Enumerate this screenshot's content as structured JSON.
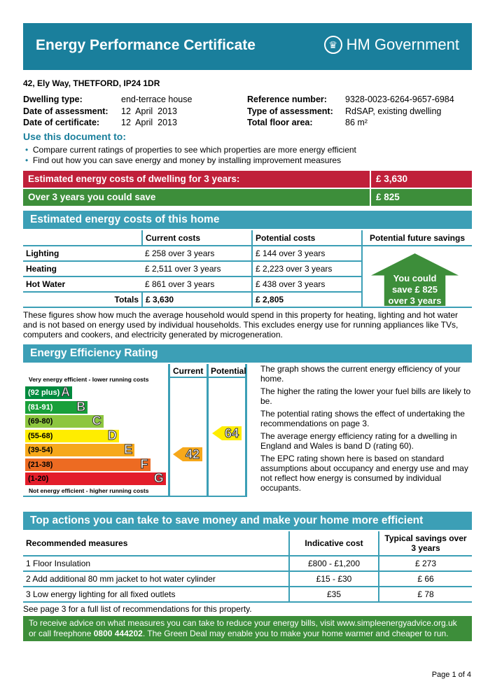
{
  "header": {
    "title": "Energy Performance Certificate",
    "brand": "HM Government"
  },
  "address": "42, Ely Way, THETFORD, IP24 1DR",
  "details": [
    {
      "label": "Dwelling type:",
      "value": "end-terrace house"
    },
    {
      "label": "Date of assessment:",
      "value": "12  April  2013"
    },
    {
      "label": "Date of certificate:",
      "value": "12  April  2013"
    },
    {
      "label": "Reference number:",
      "value": "9328-0023-6264-9657-6984"
    },
    {
      "label": "Type of assessment:",
      "value": "RdSAP, existing dwelling"
    },
    {
      "label": "Total floor area:",
      "value": "86 m²"
    }
  ],
  "use": {
    "title": "Use this document to:",
    "items": [
      "Compare current ratings of properties to see which properties are more energy efficient",
      "Find out how you can save energy and money by installing improvement measures"
    ]
  },
  "summary": [
    {
      "label": "Estimated energy costs of dwelling for 3 years:",
      "value": "£ 3,630",
      "color": "#c0203a"
    },
    {
      "label": "Over 3 years you could save",
      "value": "£ 825",
      "color": "#3d8e3a"
    }
  ],
  "costs": {
    "title": "Estimated energy costs of this home",
    "headers": [
      "",
      "Current costs",
      "Potential costs",
      "Potential future savings"
    ],
    "rows": [
      [
        "Lighting",
        "£ 258 over 3 years",
        "£ 144 over 3 years"
      ],
      [
        "Heating",
        "£ 2,511 over 3 years",
        "£ 2,223 over 3 years"
      ],
      [
        "Hot Water",
        "£ 861 over 3 years",
        "£ 438 over 3 years"
      ]
    ],
    "totals": [
      "Totals",
      "£ 3,630",
      "£ 2,805"
    ],
    "savings": [
      "You could",
      "save £ 825",
      "over 3 years"
    ],
    "note": "These figures show how much the average household would spend in this property for heating, lighting and hot water and is not based on energy used by individual households. This excludes energy use for running appliances like TVs, computers and cookers, and electricity generated by microgeneration."
  },
  "rating": {
    "title": "Energy Efficiency Rating",
    "col_current": "Current",
    "col_potential": "Potential",
    "top": "Very energy efficient - lower running costs",
    "bottom": "Not energy efficient - higher running costs",
    "bands": [
      {
        "range": "(92 plus)",
        "letter": "A",
        "color": "#008a3e"
      },
      {
        "range": "(81-91)",
        "letter": "B",
        "color": "#19a03a"
      },
      {
        "range": "(69-80)",
        "letter": "C",
        "color": "#8dc63f"
      },
      {
        "range": "(55-68)",
        "letter": "D",
        "color": "#ffed00"
      },
      {
        "range": "(39-54)",
        "letter": "E",
        "color": "#f6a81b"
      },
      {
        "range": "(21-38)",
        "letter": "F",
        "color": "#ed6b22"
      },
      {
        "range": "(1-20)",
        "letter": "G",
        "color": "#e31d2a"
      }
    ],
    "current": "42",
    "potential": "64",
    "text": [
      "The graph shows the current energy efficiency of your home.",
      "The higher the rating the lower your fuel bills are likely to be.",
      "The potential rating shows the effect of undertaking the recommendations on page 3.",
      "The average energy efficiency rating for a dwelling in England and Wales is band D (rating 60).",
      "The EPC rating shown here is based on standard assumptions about occupancy and energy use and may not reflect how energy is consumed by individual occupants."
    ]
  },
  "actions": {
    "title": "Top actions you can take to save money and make your home more efficient",
    "headers": [
      "Recommended measures",
      "Indicative cost",
      "Typical savings over 3 years"
    ],
    "rows": [
      [
        "1  Floor Insulation",
        "£800 - £1,200",
        "£ 273"
      ],
      [
        "2  Add additional 80 mm jacket to hot water cylinder",
        "£15 - £30",
        "£ 66"
      ],
      [
        "3  Low energy lighting for all fixed outlets",
        "£35",
        "£ 78"
      ]
    ],
    "note": "See page 3 for a full list of recommendations for this property."
  },
  "advice": {
    "text1": "To receive advice on what measures you can take to reduce your energy bills, visit www.simpleenergyadvice.org.uk or call freephone ",
    "phone": "0800 444202",
    "text2": ". The Green Deal may enable you to make your home warmer and cheaper to run."
  },
  "page": "Page 1 of 4"
}
